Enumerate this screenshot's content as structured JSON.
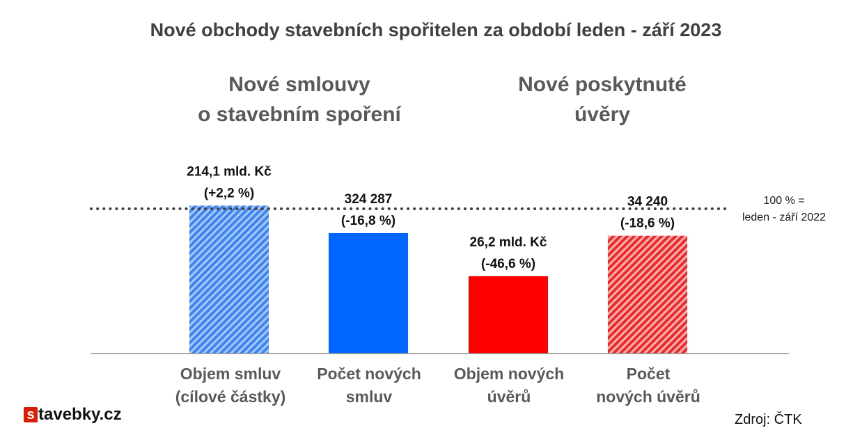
{
  "chart_data": {
    "type": "bar",
    "title": "Nové obchody stavebních spořitelen za období leden - září 2023",
    "groups": [
      {
        "label": "Nové smlouvy\no stavebním spoření"
      },
      {
        "label": "Nové poskytnuté\núvěry"
      }
    ],
    "categories": [
      "Objem smluv\n(cílové částky)",
      "Počet  nových\nsmluv",
      "Objem nových\núvěrů",
      "Počet\nnových úvěrů"
    ],
    "values": [
      102.2,
      83.2,
      53.4,
      81.4
    ],
    "value_unit": "% of leden - září 2022",
    "data_labels": [
      [
        "214,1 mld. Kč",
        "(+2,2 %)"
      ],
      [
        "324 287",
        "(-16,8 %)"
      ],
      [
        "26,2 mld. Kč",
        "(-46,6 %)"
      ],
      [
        "34 240",
        "(-18,6 %)"
      ]
    ],
    "bar_colors": [
      "#3d85f0",
      "#0066ff",
      "#ff0000",
      "#ee2b2b"
    ],
    "bar_patterns": [
      "hatched",
      "solid",
      "solid",
      "hatched"
    ],
    "reference_line": {
      "value": 100,
      "label": "100 % =\nleden - září 2022",
      "style": "dotted"
    },
    "ylim": [
      0,
      120
    ],
    "grid": false,
    "legend": "none"
  },
  "brand": {
    "logo_letter": "s",
    "logo_rest": "tavebky.cz"
  },
  "source": "Zdroj: ČTK"
}
